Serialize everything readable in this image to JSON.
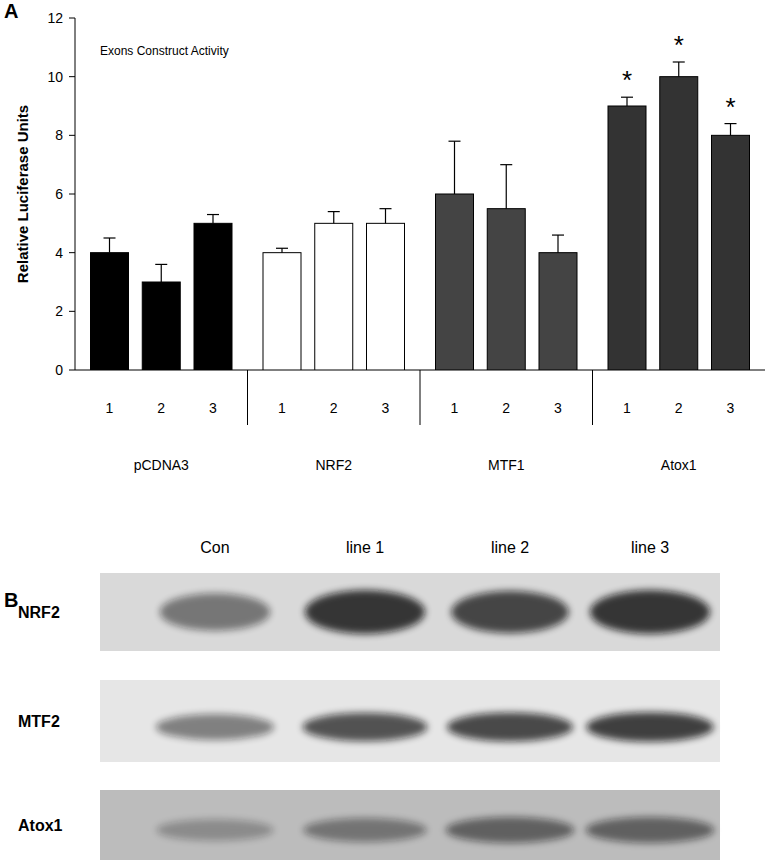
{
  "chart_data": {
    "type": "bar",
    "panel_label": "A",
    "title": "Exons Construct Activity",
    "y_label": "Relative Luciferase Units",
    "categories": [
      "1",
      "2",
      "3"
    ],
    "series": [
      {
        "name": "pCDNA3",
        "color": "#000000",
        "values": [
          4,
          3,
          5
        ],
        "errors": [
          0.5,
          0.6,
          0.3
        ]
      },
      {
        "name": "NRF2",
        "color": "#ffffff",
        "values": [
          4,
          5,
          5
        ],
        "errors": [
          0.15,
          0.4,
          0.5
        ]
      },
      {
        "name": "MTF1",
        "color": "#444444",
        "values": [
          6,
          5.5,
          4
        ],
        "errors": [
          1.8,
          1.5,
          0.6
        ]
      },
      {
        "name": "Atox1",
        "color": "#333333",
        "values": [
          9,
          10,
          8
        ],
        "errors": [
          0.3,
          0.5,
          0.4
        ],
        "significance": [
          "*",
          "*",
          "*"
        ]
      }
    ],
    "ylim": [
      0,
      12
    ],
    "yticks": [
      0,
      2,
      4,
      6,
      8,
      10,
      12
    ],
    "grid": false
  },
  "blot": {
    "panel_label": "B",
    "columns": [
      "Con",
      "line 1",
      "line 2",
      "line 3"
    ],
    "rows": [
      "NRF2",
      "MTF2",
      "Atox1"
    ]
  }
}
